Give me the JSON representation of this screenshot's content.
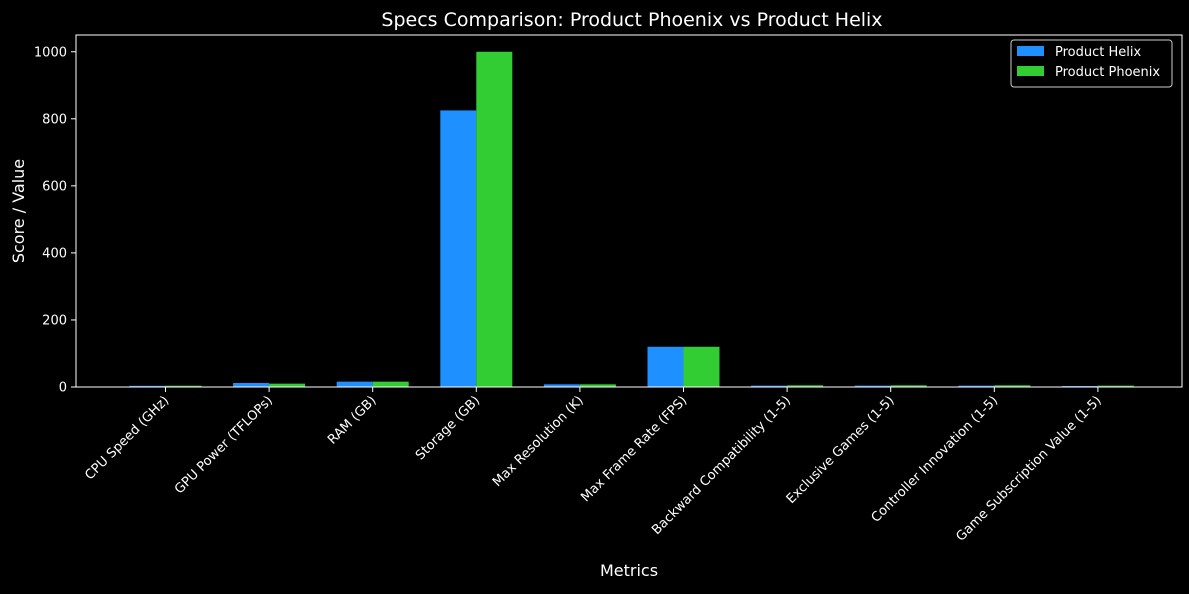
{
  "chart_data": {
    "type": "bar",
    "title": "Specs Comparison: Product Phoenix vs Product Helix",
    "xlabel": "Metrics",
    "ylabel": "Score / Value",
    "ylim": [
      0,
      1050
    ],
    "yticks": [
      0,
      200,
      400,
      600,
      800,
      1000
    ],
    "grid": false,
    "legend_position": "top-right",
    "categories": [
      "CPU Speed (GHz)",
      "GPU Power (TFLOPs)",
      "RAM (GB)",
      "Storage (GB)",
      "Max Resolution (K)",
      "Max Frame Rate (FPS)",
      "Backward Compatibility (1-5)",
      "Exclusive Games (1-5)",
      "Controller Innovation (1-5)",
      "Game Subscription Value (1-5)"
    ],
    "series": [
      {
        "name": "Product Helix",
        "color": "#1e90ff",
        "values": [
          3.5,
          12,
          16,
          825,
          8,
          120,
          4,
          4,
          4,
          3
        ]
      },
      {
        "name": "Product Phoenix",
        "color": "#32cd32",
        "values": [
          3.8,
          10,
          16,
          1000,
          8,
          120,
          5,
          5,
          5,
          4
        ]
      }
    ]
  }
}
